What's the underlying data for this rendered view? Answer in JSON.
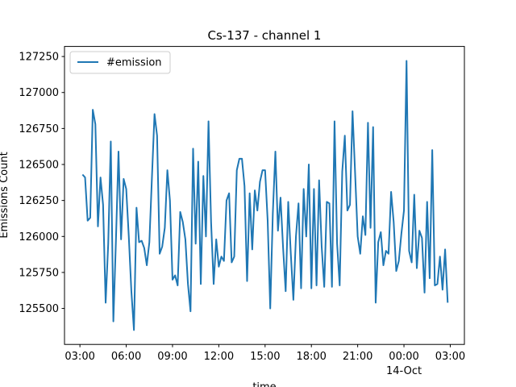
{
  "chart_data": {
    "type": "line",
    "title": "Cs-137 - channel 1",
    "xlabel": "time",
    "ylabel": "Emissions Count",
    "x_start": "2023-10-13 03:10",
    "x_step_minutes": 10,
    "xlim": [
      "2023-10-13 02:00",
      "2023-10-14 03:55"
    ],
    "ylim": [
      125250,
      127320
    ],
    "x_ticks": [
      {
        "value": "2023-10-13 03:00",
        "label": "03:00"
      },
      {
        "value": "2023-10-13 06:00",
        "label": "06:00"
      },
      {
        "value": "2023-10-13 09:00",
        "label": "09:00"
      },
      {
        "value": "2023-10-13 12:00",
        "label": "12:00"
      },
      {
        "value": "2023-10-13 15:00",
        "label": "15:00"
      },
      {
        "value": "2023-10-13 18:00",
        "label": "18:00"
      },
      {
        "value": "2023-10-13 21:00",
        "label": "21:00"
      },
      {
        "value": "2023-10-14 00:00",
        "label": "00:00",
        "sublabel": "14-Oct"
      },
      {
        "value": "2023-10-14 03:00",
        "label": "03:00"
      }
    ],
    "y_ticks": [
      {
        "value": 125500,
        "label": "125500"
      },
      {
        "value": 125750,
        "label": "125750"
      },
      {
        "value": 126000,
        "label": "126000"
      },
      {
        "value": 126250,
        "label": "126250"
      },
      {
        "value": 126500,
        "label": "126500"
      },
      {
        "value": 126750,
        "label": "126750"
      },
      {
        "value": 127000,
        "label": "127000"
      },
      {
        "value": 127250,
        "label": "127250"
      }
    ],
    "grid": false,
    "legend": {
      "position": "top-left"
    },
    "series": [
      {
        "name": "#emission",
        "color": "#1f77b4",
        "values": [
          126430,
          126410,
          126110,
          126130,
          126880,
          126780,
          126070,
          126410,
          126220,
          125540,
          125950,
          126660,
          125410,
          125970,
          126590,
          125980,
          126400,
          126330,
          126000,
          125620,
          125350,
          126200,
          125960,
          125970,
          125920,
          125800,
          125960,
          126410,
          126850,
          126700,
          125880,
          125930,
          126060,
          126460,
          126250,
          125700,
          125730,
          125660,
          126170,
          126100,
          125980,
          125670,
          125480,
          126610,
          125950,
          126520,
          125670,
          126420,
          126000,
          126800,
          126100,
          125670,
          125980,
          125790,
          125860,
          125830,
          126250,
          126300,
          125820,
          125860,
          126460,
          126540,
          126540,
          126350,
          125690,
          126300,
          125910,
          126320,
          126180,
          126380,
          126460,
          126460,
          126110,
          125500,
          126160,
          126590,
          126040,
          126270,
          125920,
          125620,
          126240,
          125880,
          125560,
          126000,
          126230,
          125640,
          126330,
          126000,
          126500,
          125640,
          126330,
          125660,
          126390,
          125930,
          125650,
          126240,
          126230,
          125650,
          126800,
          125950,
          125660,
          126450,
          126700,
          126180,
          126220,
          126870,
          126440,
          126000,
          125880,
          126140,
          126010,
          126790,
          126060,
          126760,
          125540,
          125960,
          126030,
          125800,
          125900,
          125880,
          126310,
          126100,
          125760,
          125830,
          126020,
          126180,
          127220,
          125900,
          125820,
          126290,
          125780,
          126040,
          125990,
          125610,
          126240,
          125710,
          126600,
          125660,
          125670,
          125860,
          125630,
          125910,
          125540
        ]
      }
    ]
  }
}
